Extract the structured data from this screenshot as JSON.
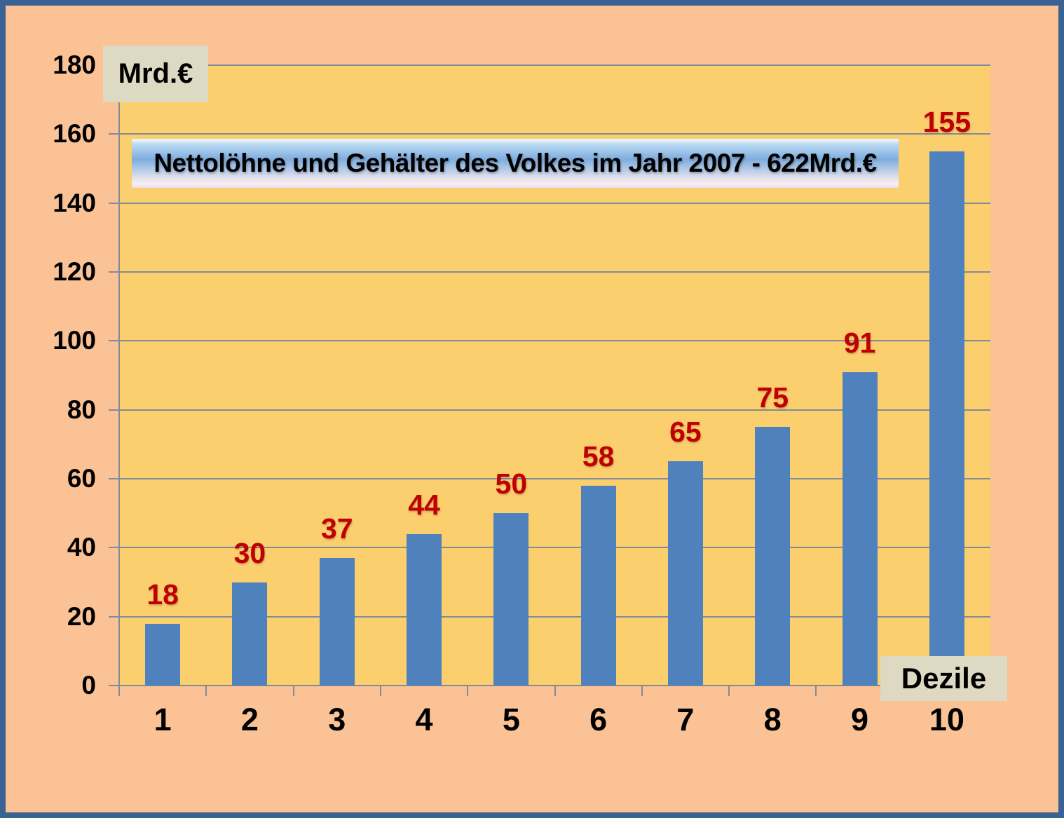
{
  "chart_data": {
    "type": "bar",
    "title": "Nettolöhne und Gehälter des Volkes im Jahr 2007  - 622Mrd.€",
    "categories": [
      "1",
      "2",
      "3",
      "4",
      "5",
      "6",
      "7",
      "8",
      "9",
      "10"
    ],
    "values": [
      18,
      30,
      37,
      44,
      50,
      58,
      65,
      75,
      91,
      155
    ],
    "xlabel": "Dezile",
    "ylabel": "Mrd.€",
    "ylim": [
      0,
      180
    ],
    "ytick_step": 20,
    "ytick_labels": [
      "0",
      "20",
      "40",
      "60",
      "80",
      "100",
      "120",
      "140",
      "160",
      "180"
    ],
    "grid": true,
    "legend": "none",
    "value_labels_shown": true
  },
  "colors": {
    "bar_fill": "#4F81BD",
    "value_label": "#C00000",
    "plot_background": "#FBCE6E",
    "outer_background": "#FAC295",
    "frame_border": "#3A6292",
    "grid_line": "#808C99",
    "axis_line": "#808C99",
    "tick_label": "#000000",
    "label_box_background": "#DDD9C3"
  }
}
